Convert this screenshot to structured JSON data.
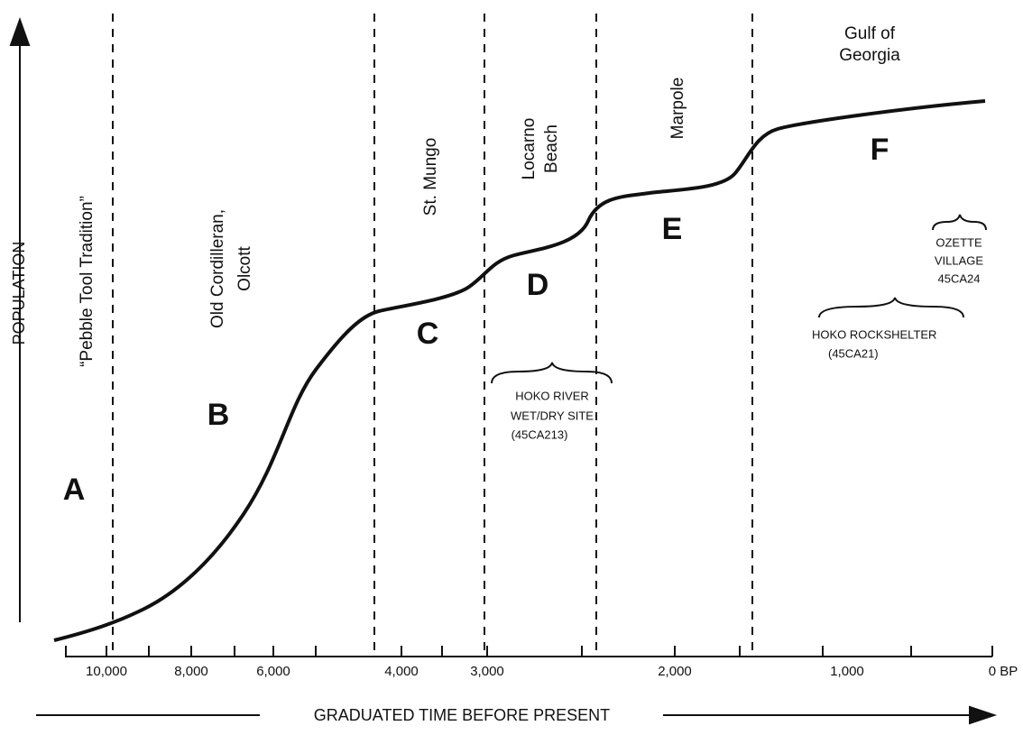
{
  "axes": {
    "y_label": "POPULATION",
    "x_label": "GRADUATED TIME BEFORE PRESENT",
    "x_ticks": [
      "10,000",
      "8,000",
      "6,000",
      "4,000",
      "3,000",
      "2,000",
      "1,000",
      "0 BP"
    ]
  },
  "periods": [
    {
      "lines": [
        "“Pebble Tool Tradition”"
      ]
    },
    {
      "lines": [
        "Old Cordilleran,",
        "Olcott"
      ]
    },
    {
      "lines": [
        "St. Mungo"
      ]
    },
    {
      "lines": [
        "Locarno",
        "Beach"
      ]
    },
    {
      "lines": [
        "Marpole"
      ]
    },
    {
      "lines": [
        "Gulf of",
        "Georgia"
      ]
    }
  ],
  "phases": [
    "A",
    "B",
    "C",
    "D",
    "E",
    "F"
  ],
  "sites": [
    {
      "lines": [
        "HOKO RIVER",
        "WET/DRY SITE",
        "(45CA213)"
      ]
    },
    {
      "lines": [
        "HOKO ROCKSHELTER",
        "(45CA21)"
      ]
    },
    {
      "lines": [
        "OZETTE",
        "VILLAGE",
        "45CA24"
      ]
    }
  ]
}
